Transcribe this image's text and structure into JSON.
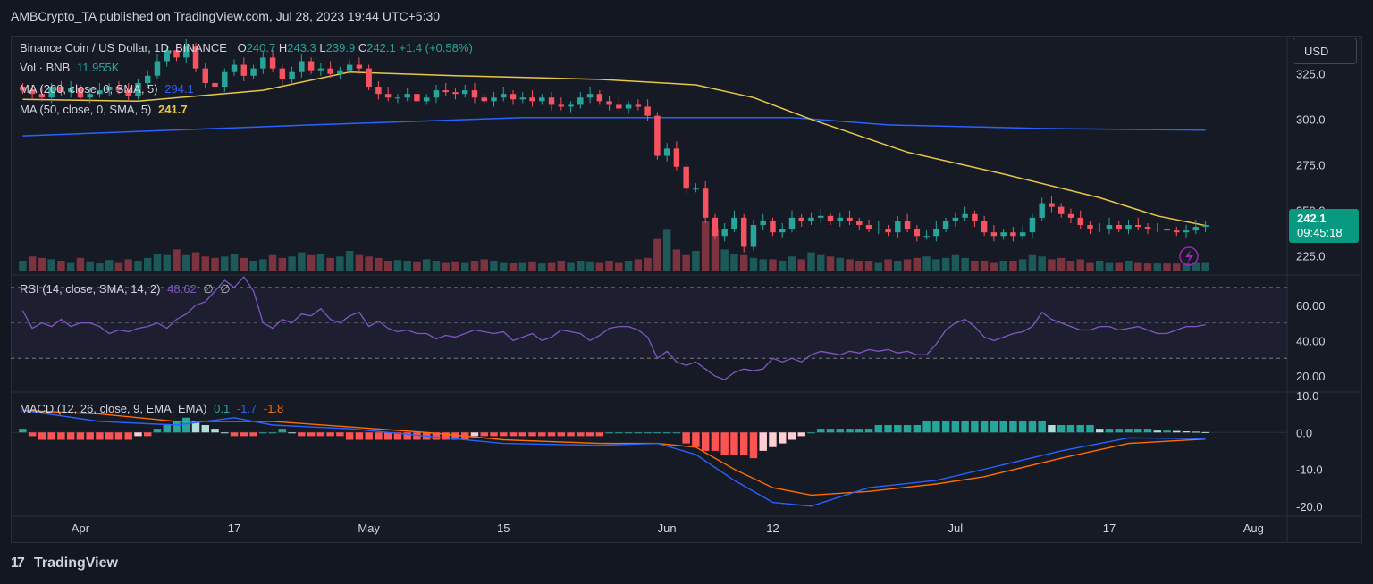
{
  "header": {
    "publisher": "AMBCrypto_TA published on TradingView.com, Jul 28, 2023 19:44 UTC+5:30"
  },
  "colors": {
    "up": "#26a69a",
    "down": "#f7525f",
    "ma50": "#e8c848",
    "ma200": "#2962ff",
    "rsi": "#7e57c2",
    "macd": "#2962ff",
    "signal": "#ff6d00",
    "bg": "#161a25"
  },
  "legend": {
    "symbol": "Binance Coin / US Dollar, 1D, BINANCE",
    "ohlc": {
      "o_label": "O",
      "o": "240.7",
      "h_label": "H",
      "h": "243.3",
      "l_label": "L",
      "l": "239.9",
      "c_label": "C",
      "c": "242.1",
      "chg": "+1.4 (+0.58%)"
    },
    "vol_label": "Vol · BNB",
    "vol_value": "11.955K",
    "ma200_label": "MA (200, close, 0, SMA, 5)",
    "ma200_value": "294.1",
    "ma50_label": "MA (50, close, 0, SMA, 5)",
    "ma50_value": "241.7"
  },
  "toolbar": {
    "currency": "USD"
  },
  "price_tag": {
    "price": "242.1",
    "countdown": "09:45:18"
  },
  "icons": {
    "flash": "lightning-icon",
    "logo": "tradingview-logo-icon"
  },
  "chart_data": [
    {
      "type": "candlestick",
      "name": "price",
      "y_ticks": [
        "325.0",
        "300.0",
        "275.0",
        "250.0",
        "225.0"
      ],
      "y_tick_values": [
        325,
        300,
        275,
        250,
        225
      ],
      "ylim": [
        217,
        344
      ],
      "x_ticks": [
        {
          "label": "Apr",
          "day": 6
        },
        {
          "label": "17",
          "day": 22
        },
        {
          "label": "May",
          "day": 36
        },
        {
          "label": "15",
          "day": 50
        },
        {
          "label": "Jun",
          "day": 67
        },
        {
          "label": "12",
          "day": 78
        },
        {
          "label": "Jul",
          "day": 97
        },
        {
          "label": "17",
          "day": 113
        },
        {
          "label": "Aug",
          "day": 128
        }
      ],
      "closes": [
        316,
        314,
        312,
        318,
        315,
        317,
        312,
        314,
        316,
        318,
        316,
        313,
        320,
        324,
        332,
        338,
        334,
        340,
        328,
        320,
        318,
        326,
        330,
        324,
        328,
        334,
        328,
        322,
        326,
        332,
        327,
        328,
        325,
        327,
        330,
        328,
        318,
        314,
        312,
        312,
        314,
        310,
        312,
        316,
        315,
        314,
        316,
        312,
        310,
        312,
        314,
        311,
        312,
        310,
        312,
        308,
        307,
        308,
        312,
        314,
        310,
        308,
        306,
        308,
        307,
        302,
        280,
        284,
        274,
        262,
        262,
        246,
        236,
        240,
        246,
        230,
        242,
        244,
        238,
        240,
        246,
        244,
        246,
        247,
        244,
        246,
        244,
        242,
        240,
        240,
        238,
        244,
        240,
        236,
        236,
        240,
        244,
        246,
        248,
        244,
        238,
        236,
        238,
        236,
        238,
        246,
        254,
        252,
        248,
        246,
        242,
        240,
        240,
        242,
        240,
        242,
        241,
        240,
        240,
        239,
        238,
        239,
        241,
        242
      ],
      "volumes": [
        14,
        20,
        18,
        16,
        14,
        12,
        18,
        13,
        11,
        15,
        12,
        16,
        14,
        18,
        24,
        22,
        30,
        22,
        26,
        20,
        18,
        20,
        24,
        18,
        14,
        16,
        22,
        18,
        20,
        26,
        22,
        24,
        18,
        20,
        28,
        22,
        20,
        18,
        14,
        15,
        14,
        13,
        16,
        14,
        12,
        13,
        12,
        14,
        16,
        14,
        12,
        11,
        12,
        13,
        10,
        12,
        14,
        12,
        14,
        13,
        12,
        14,
        12,
        14,
        16,
        18,
        45,
        58,
        30,
        22,
        28,
        70,
        60,
        30,
        24,
        22,
        18,
        16,
        16,
        14,
        20,
        16,
        26,
        22,
        20,
        18,
        16,
        14,
        14,
        12,
        16,
        14,
        16,
        18,
        20,
        16,
        18,
        22,
        18,
        14,
        14,
        12,
        14,
        14,
        16,
        22,
        20,
        16,
        18,
        14,
        16,
        12,
        14,
        12,
        12,
        14,
        12,
        10,
        10,
        10,
        10,
        11,
        12,
        12
      ],
      "series": [
        {
          "name": "MA (200, close, 0, SMA, 5)",
          "color": "#2962ff",
          "points": [
            [
              0,
              291
            ],
            [
              30,
              297
            ],
            [
              52,
              301
            ],
            [
              80,
              301
            ],
            [
              90,
              297
            ],
            [
              106,
              295
            ],
            [
              123,
              294.1
            ]
          ]
        },
        {
          "name": "MA (50, close, 0, SMA, 5)",
          "color": "#e8c848",
          "points": [
            [
              0,
              311
            ],
            [
              12,
              310
            ],
            [
              25,
              316
            ],
            [
              34,
              326
            ],
            [
              45,
              324
            ],
            [
              60,
              322
            ],
            [
              70,
              319
            ],
            [
              76,
              312
            ],
            [
              82,
              300
            ],
            [
              92,
              282
            ],
            [
              102,
              270
            ],
            [
              112,
              257
            ],
            [
              118,
              247
            ],
            [
              123,
              241.7
            ]
          ]
        }
      ]
    },
    {
      "type": "line",
      "name": "RSI",
      "label": "RSI (14, close, SMA, 14, 2)",
      "value_label": "48.62",
      "extra_labels": [
        "∅",
        "∅"
      ],
      "y_ticks": [
        "60.00",
        "40.00",
        "20.00"
      ],
      "y_tick_values": [
        60,
        40,
        20
      ],
      "bands": [
        70,
        30
      ],
      "ylim": [
        12,
        75
      ],
      "values": [
        57,
        47,
        50,
        48,
        52,
        48,
        50,
        50,
        48,
        44,
        46,
        45,
        47,
        48,
        50,
        47,
        52,
        55,
        60,
        62,
        68,
        74,
        70,
        76,
        68,
        50,
        47,
        52,
        50,
        55,
        54,
        58,
        52,
        50,
        54,
        56,
        48,
        51,
        47,
        45,
        46,
        44,
        44,
        41,
        43,
        42,
        44,
        46,
        45,
        44,
        45,
        40,
        42,
        44,
        40,
        42,
        46,
        45,
        44,
        40,
        43,
        47,
        48,
        48,
        46,
        42,
        30,
        34,
        28,
        26,
        28,
        24,
        20,
        18,
        22,
        24,
        23,
        24,
        30,
        28,
        30,
        28,
        32,
        34,
        33,
        32,
        34,
        33,
        35,
        34,
        35,
        33,
        34,
        32,
        32,
        38,
        46,
        50,
        52,
        48,
        42,
        40,
        42,
        44,
        45,
        48,
        56,
        52,
        50,
        48,
        46,
        46,
        48,
        48,
        46,
        47,
        48,
        46,
        44,
        44,
        46,
        48,
        48,
        49
      ]
    },
    {
      "type": "macd",
      "name": "MACD",
      "label": "MACD (12, 26, close, 9, EMA, EMA)",
      "values_label": [
        "0.1",
        "-1.7",
        "-1.8"
      ],
      "y_ticks": [
        "10.0",
        "0.0",
        "-10.0",
        "-20.0"
      ],
      "y_tick_values": [
        10,
        0,
        -10,
        -20
      ],
      "ylim": [
        -22,
        10
      ],
      "macd": [
        [
          0,
          6
        ],
        [
          8,
          3
        ],
        [
          16,
          2
        ],
        [
          22,
          4
        ],
        [
          26,
          2
        ],
        [
          34,
          1
        ],
        [
          42,
          -1
        ],
        [
          50,
          -3
        ],
        [
          60,
          -3.5
        ],
        [
          66,
          -3
        ],
        [
          70,
          -6
        ],
        [
          74,
          -13
        ],
        [
          78,
          -19
        ],
        [
          82,
          -20
        ],
        [
          88,
          -15
        ],
        [
          95,
          -13
        ],
        [
          100,
          -10
        ],
        [
          108,
          -5
        ],
        [
          115,
          -1.5
        ],
        [
          123,
          -1.7
        ]
      ],
      "signal": [
        [
          0,
          6
        ],
        [
          8,
          5
        ],
        [
          16,
          3
        ],
        [
          22,
          3
        ],
        [
          26,
          3
        ],
        [
          34,
          1.5
        ],
        [
          42,
          0
        ],
        [
          50,
          -2
        ],
        [
          60,
          -3
        ],
        [
          66,
          -3
        ],
        [
          70,
          -4
        ],
        [
          74,
          -10
        ],
        [
          78,
          -15
        ],
        [
          82,
          -17
        ],
        [
          88,
          -16
        ],
        [
          95,
          -14
        ],
        [
          100,
          -12
        ],
        [
          108,
          -7
        ],
        [
          115,
          -3
        ],
        [
          123,
          -1.8
        ]
      ],
      "histogram": [
        1,
        -1,
        -2,
        -2,
        -2,
        -2,
        -2,
        -2,
        -2,
        -2,
        -2,
        -2,
        -1,
        -1,
        1,
        2,
        3,
        4,
        3,
        2,
        1,
        0,
        -1,
        -1,
        -1,
        0,
        0,
        1,
        0,
        -1,
        -1,
        -1,
        -1,
        -1,
        -2,
        -2,
        -2,
        -2,
        -2,
        -2,
        -2,
        -2,
        -2,
        -2,
        -2,
        -2,
        -2,
        -1,
        -1,
        -1,
        -1,
        -1,
        -1,
        -1,
        -1,
        -1,
        -1,
        -1,
        -1,
        -1,
        -1,
        0,
        0,
        0,
        0,
        0,
        0,
        0,
        0,
        -3,
        -4,
        -5,
        -5,
        -6,
        -6,
        -6,
        -7,
        -5,
        -4,
        -3,
        -2,
        -1,
        0,
        1,
        1,
        1,
        1,
        1,
        1,
        2,
        2,
        2,
        2,
        2,
        3,
        3,
        3,
        3,
        3,
        3,
        3,
        3,
        3,
        3,
        3,
        3,
        3,
        2,
        2,
        2,
        2,
        2,
        1,
        1,
        1,
        1,
        1,
        1,
        0.5,
        0.5,
        0.4,
        0.3,
        0.2,
        0.1
      ]
    }
  ]
}
